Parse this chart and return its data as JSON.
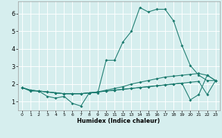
{
  "xlabel": "Humidex (Indice chaleur)",
  "background_color": "#d6eeee",
  "grid_color": "#ffffff",
  "line_color": "#1a7a6e",
  "xlim": [
    -0.5,
    23.5
  ],
  "ylim": [
    0.5,
    6.7
  ],
  "xticks": [
    0,
    1,
    2,
    3,
    4,
    5,
    6,
    7,
    8,
    9,
    10,
    11,
    12,
    13,
    14,
    15,
    16,
    17,
    18,
    19,
    20,
    21,
    22,
    23
  ],
  "yticks": [
    1,
    2,
    3,
    4,
    5,
    6
  ],
  "series": [
    [
      1.8,
      1.6,
      1.6,
      1.3,
      1.2,
      1.3,
      0.9,
      0.75,
      1.5,
      1.5,
      3.35,
      3.35,
      4.4,
      5.0,
      6.35,
      6.1,
      6.25,
      6.25,
      5.6,
      4.2,
      3.05,
      2.5,
      2.2,
      2.2
    ],
    [
      1.8,
      1.65,
      1.6,
      1.55,
      1.5,
      1.45,
      1.45,
      1.45,
      1.5,
      1.55,
      1.65,
      1.75,
      1.85,
      2.0,
      2.1,
      2.2,
      2.3,
      2.4,
      2.45,
      2.5,
      2.55,
      2.6,
      2.5,
      2.2
    ],
    [
      1.8,
      1.65,
      1.6,
      1.55,
      1.5,
      1.45,
      1.45,
      1.45,
      1.5,
      1.55,
      1.6,
      1.65,
      1.7,
      1.75,
      1.8,
      1.85,
      1.9,
      1.95,
      2.0,
      2.05,
      2.1,
      2.15,
      1.4,
      2.2
    ],
    [
      1.8,
      1.65,
      1.6,
      1.55,
      1.5,
      1.45,
      1.45,
      1.45,
      1.5,
      1.55,
      1.6,
      1.65,
      1.7,
      1.75,
      1.8,
      1.85,
      1.9,
      1.95,
      2.0,
      2.05,
      1.1,
      1.4,
      2.5,
      2.2
    ]
  ]
}
